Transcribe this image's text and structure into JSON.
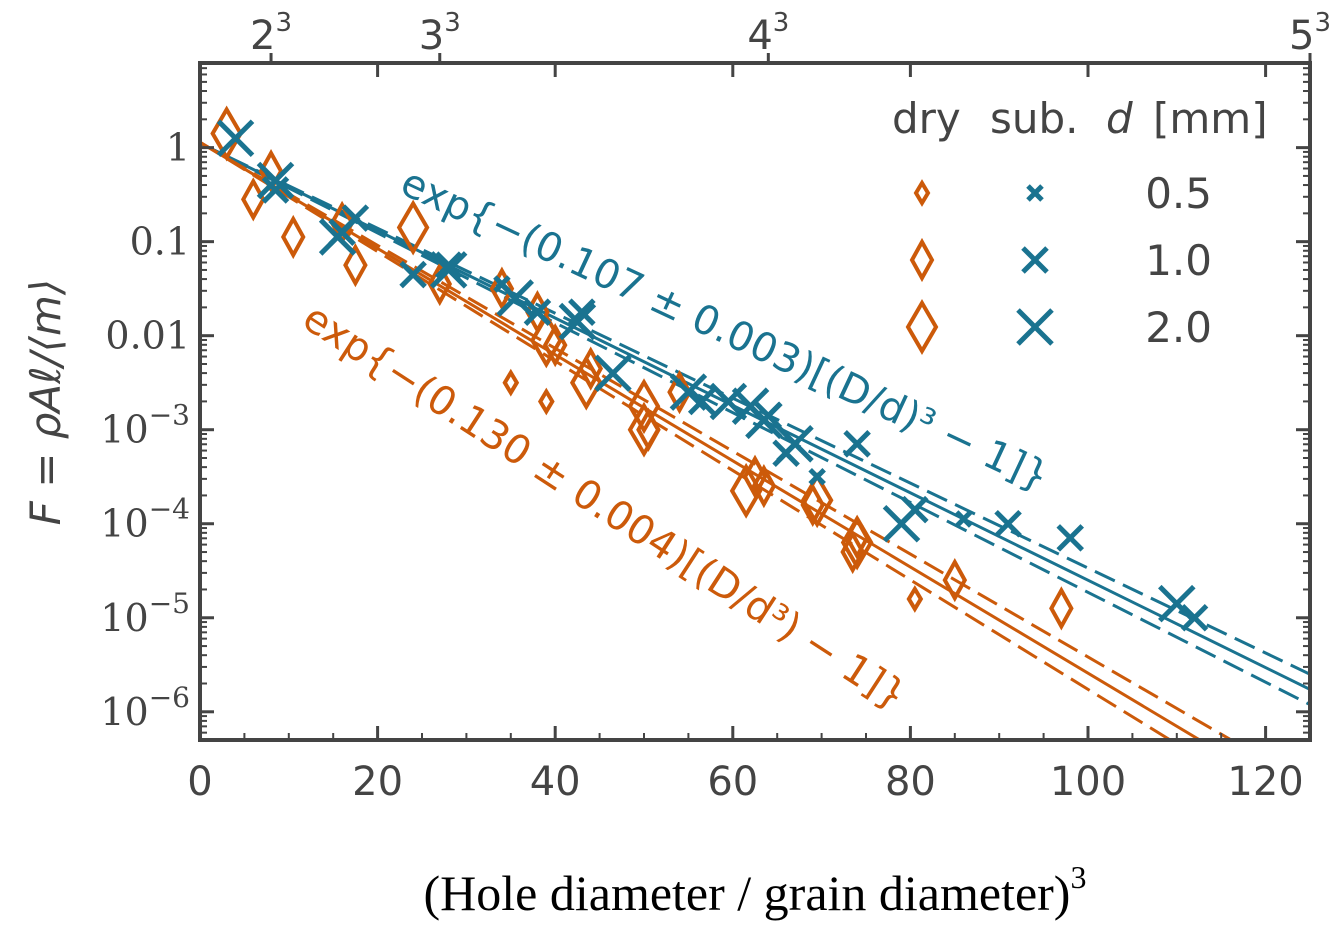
{
  "chart_data": {
    "type": "scatter",
    "xlabel": "(Hole diameter / grain diameter)",
    "xlabel_superscript": "3",
    "ylabel": "F = ρAℓ/⟨m⟩",
    "xlim": [
      0,
      125
    ],
    "ylim_log10": [
      -6.3,
      0.9
    ],
    "y_scale": "log",
    "x_ticks": [
      0,
      20,
      40,
      60,
      80,
      100,
      120
    ],
    "x_tick_labels": [
      "0",
      "20",
      "40",
      "60",
      "80",
      "100",
      "120"
    ],
    "top_ticks": [
      8,
      27,
      64,
      125
    ],
    "top_tick_bases": [
      "2",
      "3",
      "4",
      "5"
    ],
    "top_tick_exponent": "3",
    "y_ticks": [
      {
        "exp": 0,
        "label": "1",
        "form": "plain"
      },
      {
        "exp": -1,
        "label": "0.1",
        "form": "plain"
      },
      {
        "exp": -2,
        "label": "0.01",
        "form": "plain"
      },
      {
        "exp": -3,
        "label": "10",
        "sup": "−3",
        "form": "power"
      },
      {
        "exp": -4,
        "label": "10",
        "sup": "−4",
        "form": "power"
      },
      {
        "exp": -5,
        "label": "10",
        "sup": "−5",
        "form": "power"
      },
      {
        "exp": -6,
        "label": "10",
        "sup": "−6",
        "form": "power"
      }
    ],
    "legend": {
      "placement": "top-right",
      "header": [
        "dry",
        "sub.",
        "d",
        "[mm]"
      ],
      "rows": [
        "0.5",
        "1.0",
        "2.0"
      ]
    },
    "colors": {
      "dry": "#cc5a0a",
      "sub": "#1a7390",
      "frame": "#444444"
    },
    "annotations": [
      {
        "text": "exp{−(0.107 ± 0.003)[(D/d)³ − 1]}",
        "series": "sub"
      },
      {
        "text": "exp{−(0.130 ± 0.004)[(D/d³) − 1]}",
        "series": "dry"
      }
    ],
    "fits": [
      {
        "series": "sub",
        "slope": 0.107,
        "slope_err": 0.003
      },
      {
        "series": "dry",
        "slope": 0.13,
        "slope_err": 0.004
      }
    ],
    "series": [
      {
        "kind": "dry",
        "size_mm": 0.5,
        "points": [
          [
            35,
            -2.5
          ],
          [
            39,
            -2.7
          ],
          [
            80.5,
            -4.8
          ]
        ]
      },
      {
        "kind": "dry",
        "size_mm": 1.0,
        "points": [
          [
            6,
            -0.55
          ],
          [
            8,
            -0.25
          ],
          [
            10.5,
            -0.95
          ],
          [
            16,
            -0.8
          ],
          [
            17.5,
            -1.25
          ],
          [
            27,
            -1.45
          ],
          [
            34,
            -1.5
          ],
          [
            38,
            -1.75
          ],
          [
            40,
            -2.1
          ],
          [
            44,
            -2.35
          ],
          [
            50.5,
            -3.0
          ],
          [
            54,
            -2.6
          ],
          [
            63.5,
            -3.6
          ],
          [
            62.5,
            -3.5
          ],
          [
            69,
            -3.8
          ],
          [
            74,
            -4.15
          ],
          [
            73.5,
            -4.3
          ],
          [
            85,
            -4.6
          ],
          [
            97,
            -4.9
          ]
        ]
      },
      {
        "kind": "dry",
        "size_mm": 2.0,
        "points": [
          [
            3,
            0.15
          ],
          [
            24,
            -0.85
          ],
          [
            39,
            -2.05
          ],
          [
            43.5,
            -2.5
          ],
          [
            50,
            -2.75
          ],
          [
            50,
            -3.0
          ],
          [
            61.5,
            -3.65
          ],
          [
            69.5,
            -3.75
          ],
          [
            74,
            -4.2
          ]
        ]
      },
      {
        "kind": "sub",
        "size_mm": 0.5,
        "points": [
          [
            34,
            -1.45
          ],
          [
            69.5,
            -3.5
          ],
          [
            86,
            -3.95
          ]
        ]
      },
      {
        "kind": "sub",
        "size_mm": 1.0,
        "points": [
          [
            8.5,
            -0.45
          ],
          [
            16,
            -0.9
          ],
          [
            17.5,
            -0.75
          ],
          [
            24,
            -1.35
          ],
          [
            28,
            -1.25
          ],
          [
            38,
            -1.75
          ],
          [
            43,
            -1.75
          ],
          [
            56.5,
            -2.7
          ],
          [
            64,
            -2.85
          ],
          [
            66,
            -3.25
          ],
          [
            74,
            -3.15
          ],
          [
            80.5,
            -3.85
          ],
          [
            91,
            -4.0
          ],
          [
            98,
            -4.15
          ],
          [
            112,
            -5.0
          ]
        ]
      },
      {
        "kind": "sub",
        "size_mm": 2.0,
        "points": [
          [
            4,
            0.1
          ],
          [
            8.5,
            -0.35
          ],
          [
            15.5,
            -0.95
          ],
          [
            28,
            -1.3
          ],
          [
            35.5,
            -1.6
          ],
          [
            42.5,
            -1.85
          ],
          [
            46.5,
            -2.4
          ],
          [
            55,
            -2.6
          ],
          [
            59.5,
            -2.7
          ],
          [
            62,
            -2.75
          ],
          [
            63.5,
            -2.9
          ],
          [
            67,
            -3.15
          ],
          [
            79,
            -4.0
          ],
          [
            110,
            -4.85
          ]
        ]
      }
    ]
  }
}
